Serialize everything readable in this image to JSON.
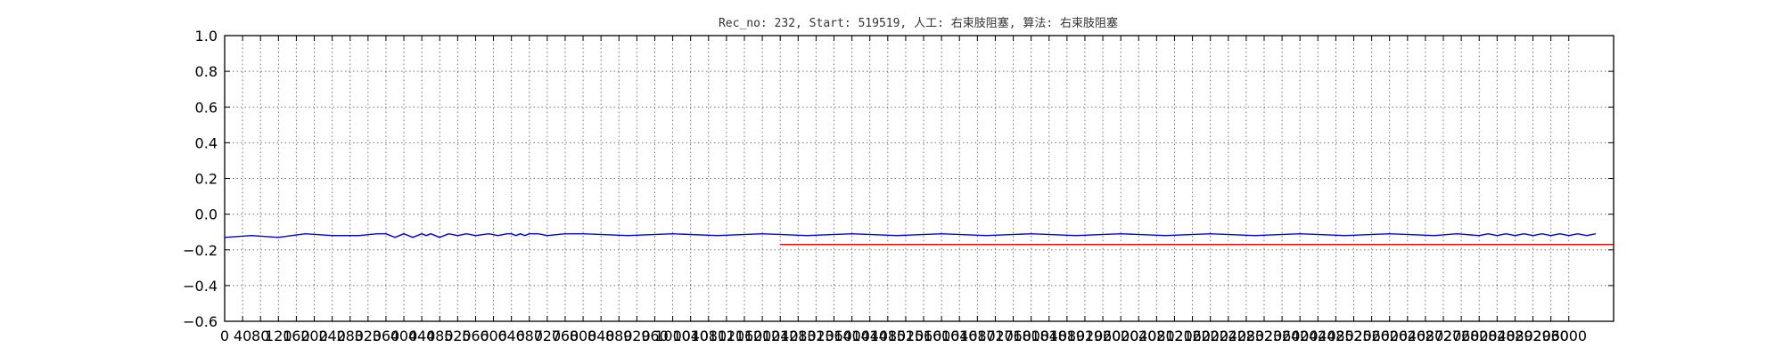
{
  "chart_data": {
    "type": "line",
    "title": "Rec_no: 232, Start: 519519, 人工: 右束肢阻塞, 算法: 右束肢阻塞",
    "xlabel": "",
    "ylabel": "",
    "xlim": [
      0,
      3100
    ],
    "ylim": [
      -0.6,
      1.0
    ],
    "yticks": [
      "1.0",
      "0.8",
      "0.6",
      "0.4",
      "0.2",
      "0.0",
      "−0.2",
      "−0.4",
      "−0.6"
    ],
    "yticks_values": [
      1.0,
      0.8,
      0.6,
      0.4,
      0.2,
      0.0,
      -0.2,
      -0.4,
      -0.6
    ],
    "xticks": [
      "0",
      "40",
      "80",
      "120",
      "160",
      "200",
      "240",
      "280",
      "320",
      "360",
      "400",
      "440",
      "480",
      "520",
      "560",
      "600",
      "640",
      "680",
      "720",
      "760",
      "800",
      "840",
      "880",
      "920",
      "960",
      "1000",
      "1040",
      "1080",
      "1120",
      "1160",
      "1200",
      "1240",
      "1280",
      "1320",
      "1360",
      "1400",
      "1440",
      "1480",
      "1520",
      "1560",
      "1600",
      "1640",
      "1680",
      "1720",
      "1760",
      "1800",
      "1840",
      "1880",
      "1920",
      "1960",
      "2000",
      "2040",
      "2080",
      "2120",
      "2160",
      "2200",
      "2240",
      "2280",
      "2320",
      "2360",
      "2400",
      "2440",
      "2480",
      "2520",
      "2560",
      "2600",
      "2640",
      "2680",
      "2720",
      "2760",
      "2800",
      "2840",
      "2880",
      "2920",
      "2960",
      "3000"
    ],
    "grid": true,
    "series": [
      {
        "color": "#0000ff",
        "x": [
          0,
          60,
          120,
          180,
          240,
          300,
          340,
          360,
          380,
          400,
          420,
          430,
          440,
          450,
          460,
          480,
          500,
          520,
          540,
          560,
          590,
          610,
          630,
          640,
          650,
          660,
          670,
          680,
          700,
          720,
          760,
          800,
          900,
          1000,
          1100,
          1200,
          1300,
          1400,
          1500,
          1600,
          1700,
          1800,
          1900,
          2000,
          2100,
          2200,
          2300,
          2400,
          2500,
          2600,
          2700,
          2750,
          2800,
          2820,
          2840,
          2860,
          2880,
          2900,
          2920,
          2940,
          2960,
          2980,
          3000,
          3020,
          3040,
          3060
        ],
        "y": [
          -0.13,
          -0.12,
          -0.13,
          -0.11,
          -0.12,
          -0.12,
          -0.11,
          -0.11,
          -0.13,
          -0.11,
          -0.13,
          -0.12,
          -0.11,
          -0.12,
          -0.11,
          -0.13,
          -0.11,
          -0.12,
          -0.11,
          -0.12,
          -0.11,
          -0.12,
          -0.11,
          -0.11,
          -0.12,
          -0.11,
          -0.12,
          -0.11,
          -0.11,
          -0.12,
          -0.11,
          -0.11,
          -0.12,
          -0.11,
          -0.12,
          -0.11,
          -0.12,
          -0.11,
          -0.12,
          -0.11,
          -0.12,
          -0.11,
          -0.12,
          -0.11,
          -0.12,
          -0.11,
          -0.12,
          -0.11,
          -0.12,
          -0.11,
          -0.12,
          -0.11,
          -0.12,
          -0.11,
          -0.12,
          -0.11,
          -0.12,
          -0.11,
          -0.12,
          -0.11,
          -0.12,
          -0.11,
          -0.12,
          -0.11,
          -0.12,
          -0.11
        ]
      },
      {
        "color": "#ff0000",
        "x": [
          1240,
          3100
        ],
        "y": [
          -0.17,
          -0.17
        ]
      }
    ]
  }
}
